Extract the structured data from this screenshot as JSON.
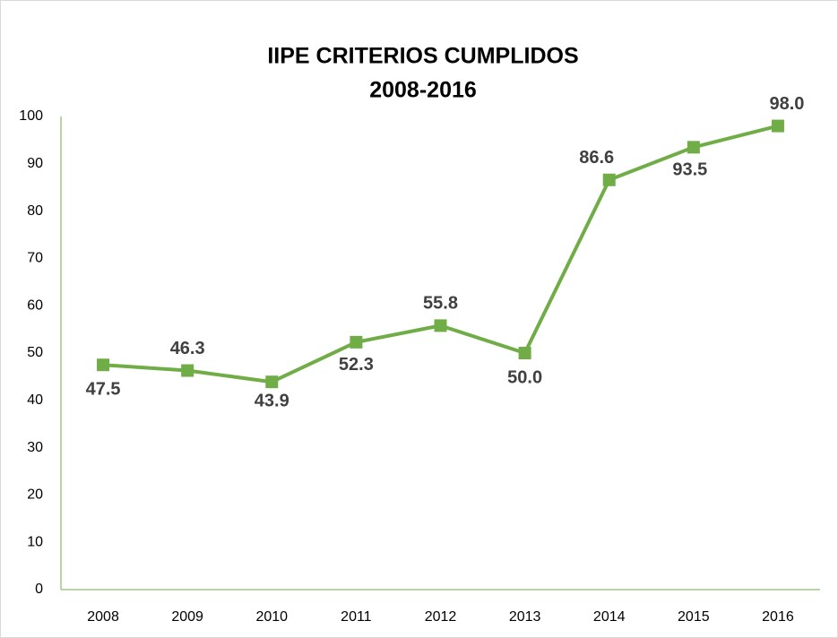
{
  "chart_data": {
    "type": "line",
    "title": "IIPE CRITERIOS CUMPLIDOS",
    "subtitle": "2008-2016",
    "categories": [
      "2008",
      "2009",
      "2010",
      "2011",
      "2012",
      "2013",
      "2014",
      "2015",
      "2016"
    ],
    "values": [
      47.5,
      46.3,
      43.9,
      52.3,
      55.8,
      50.0,
      86.6,
      93.5,
      98.0
    ],
    "value_labels": [
      "47.5",
      "46.3",
      "43.9",
      "52.3",
      "55.8",
      "50.0",
      "86.6",
      "93.5",
      "98.0"
    ],
    "color": "#70ad47",
    "ylim": [
      0,
      100
    ],
    "yticks": [
      0,
      10,
      20,
      30,
      40,
      50,
      60,
      70,
      80,
      90,
      100
    ],
    "grid": false
  }
}
